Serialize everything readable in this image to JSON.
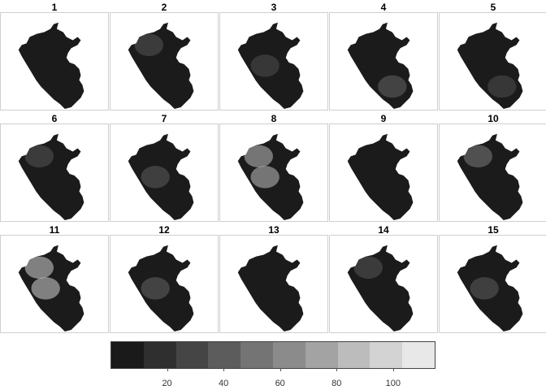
{
  "panels": [
    {
      "label": "1",
      "intensity": 0.02,
      "hotspots": []
    },
    {
      "label": "2",
      "intensity": 0.12,
      "hotspots": [
        "north"
      ]
    },
    {
      "label": "3",
      "intensity": 0.1,
      "hotspots": [
        "central"
      ]
    },
    {
      "label": "4",
      "intensity": 0.16,
      "hotspots": [
        "south"
      ]
    },
    {
      "label": "5",
      "intensity": 0.1,
      "hotspots": [
        "south"
      ]
    },
    {
      "label": "6",
      "intensity": 0.12,
      "hotspots": [
        "north"
      ]
    },
    {
      "label": "7",
      "intensity": 0.14,
      "hotspots": [
        "central"
      ]
    },
    {
      "label": "8",
      "intensity": 0.4,
      "hotspots": [
        "north",
        "central"
      ]
    },
    {
      "label": "9",
      "intensity": 0.08,
      "hotspots": []
    },
    {
      "label": "10",
      "intensity": 0.22,
      "hotspots": [
        "north"
      ]
    },
    {
      "label": "11",
      "intensity": 0.45,
      "hotspots": [
        "north",
        "central"
      ]
    },
    {
      "label": "12",
      "intensity": 0.16,
      "hotspots": [
        "central"
      ]
    },
    {
      "label": "13",
      "intensity": 0.08,
      "hotspots": []
    },
    {
      "label": "14",
      "intensity": 0.12,
      "hotspots": [
        "north"
      ]
    },
    {
      "label": "15",
      "intensity": 0.14,
      "hotspots": [
        "central"
      ]
    }
  ],
  "legend": {
    "colors": [
      "#1a1a1a",
      "#2f2f2f",
      "#454545",
      "#5c5c5c",
      "#747474",
      "#8b8b8b",
      "#a3a3a3",
      "#bcbcbc",
      "#d3d3d3",
      "#e8e8e8"
    ],
    "ticks": [
      "20",
      "40",
      "60",
      "80",
      "100"
    ],
    "min": 0,
    "max": 115
  }
}
